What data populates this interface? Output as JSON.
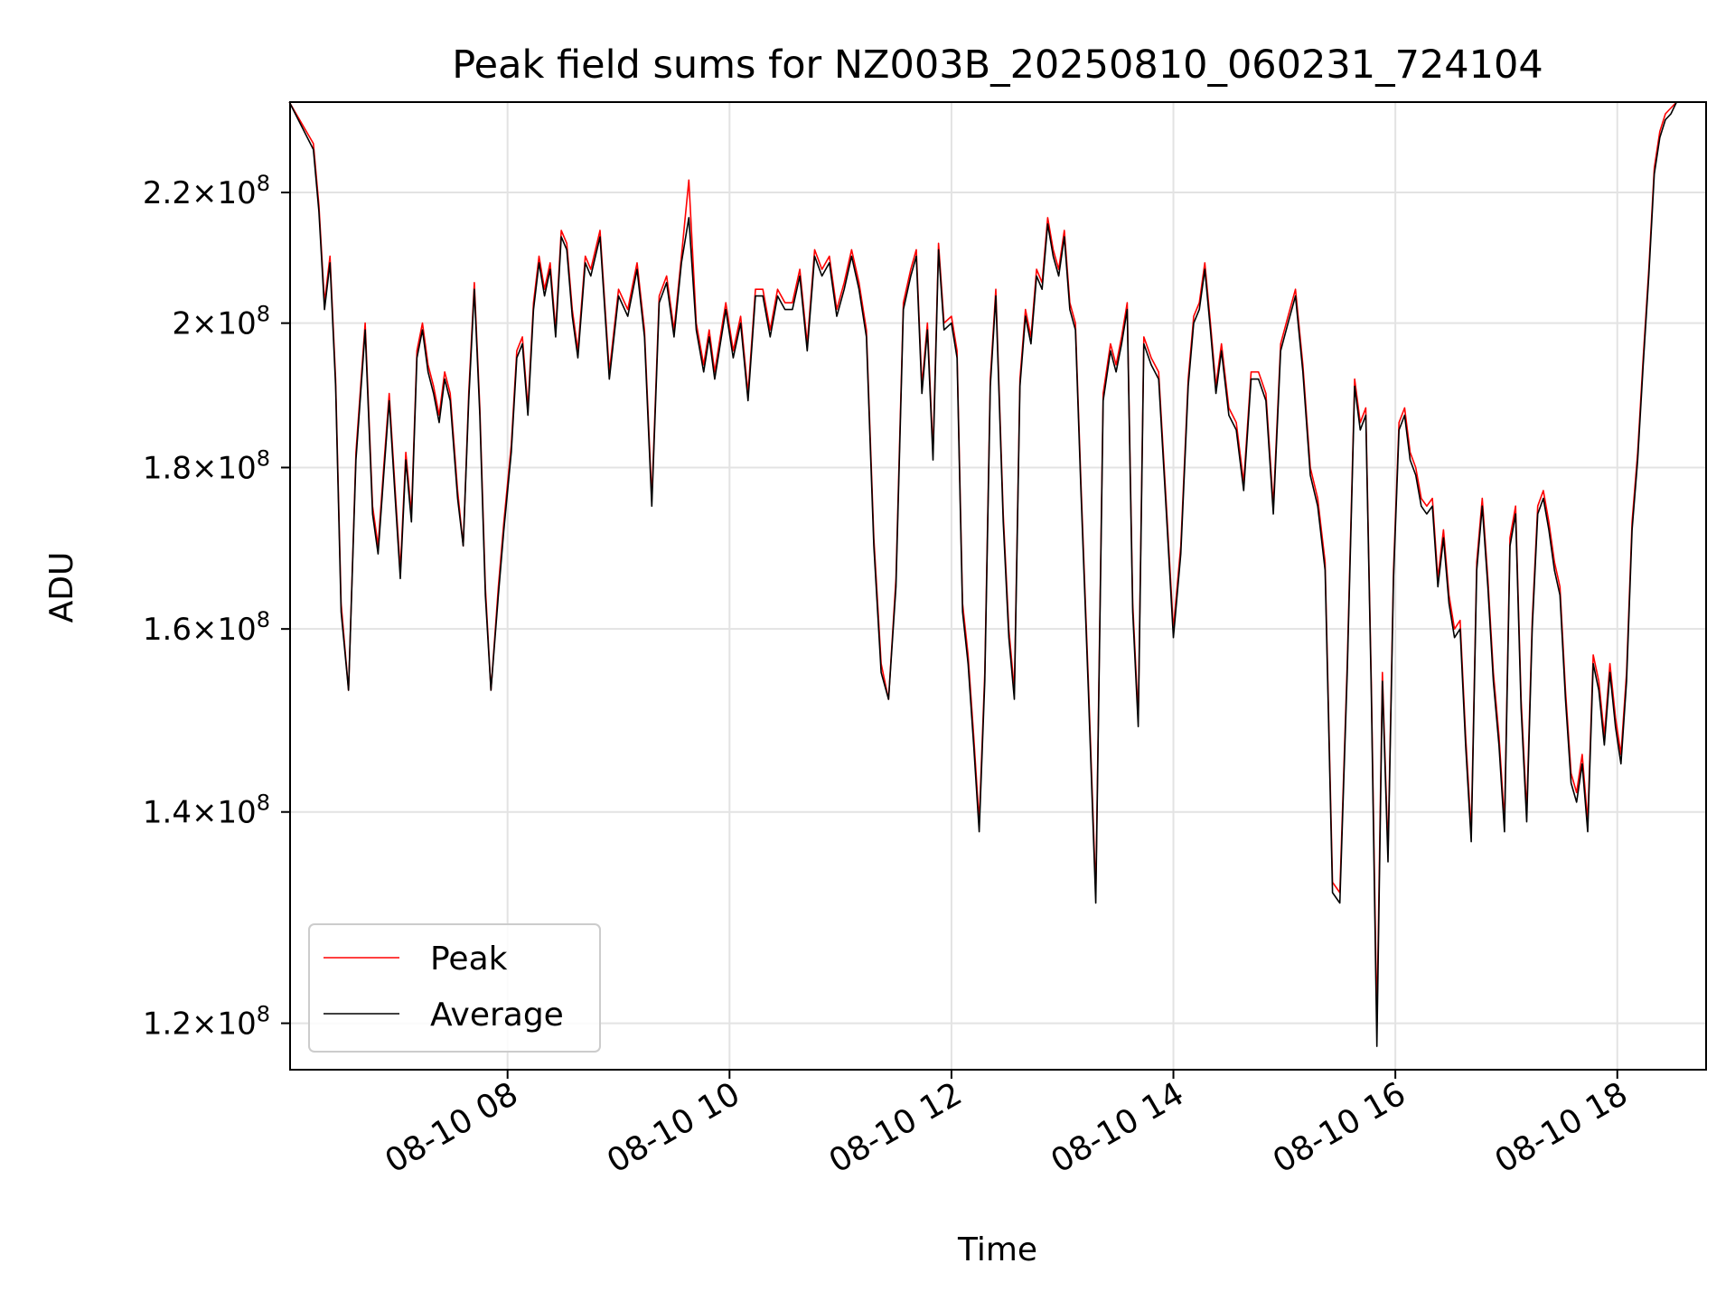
{
  "chart_data": {
    "type": "line",
    "title": "Peak field sums for NZ003B_20250810_060231_724104",
    "xlabel": "Time",
    "ylabel": "ADU",
    "yscale": "log",
    "ylim": [
      116000000,
      235000000
    ],
    "xlim_hours": [
      6.04,
      18.8
    ],
    "grid": true,
    "legend_position": "lower-left",
    "x_ticks": [
      {
        "label": "08-10 08",
        "hour": 8
      },
      {
        "label": "08-10 10",
        "hour": 10
      },
      {
        "label": "08-10 12",
        "hour": 12
      },
      {
        "label": "08-10 14",
        "hour": 14
      },
      {
        "label": "08-10 16",
        "hour": 16
      },
      {
        "label": "08-10 18",
        "hour": 18
      }
    ],
    "y_ticks": [
      {
        "mantissa": "1.2",
        "value": 120000000
      },
      {
        "mantissa": "1.4",
        "value": 140000000
      },
      {
        "mantissa": "1.6",
        "value": 160000000
      },
      {
        "mantissa": "1.8",
        "value": 180000000
      },
      {
        "mantissa": "2",
        "value": 200000000
      },
      {
        "mantissa": "2.2",
        "value": 220000000
      }
    ],
    "y_tick_base": "10",
    "y_tick_exponent": "8",
    "x": [
      "08-10 06:02",
      "08-10 06:15",
      "08-10 06:18",
      "08-10 06:21",
      "08-10 06:24",
      "08-10 06:27",
      "08-10 06:30",
      "08-10 06:34",
      "08-10 06:38",
      "08-10 06:43",
      "08-10 06:47",
      "08-10 06:50",
      "08-10 06:53",
      "08-10 06:56",
      "08-10 06:59",
      "08-10 07:02",
      "08-10 07:05",
      "08-10 07:08",
      "08-10 07:11",
      "08-10 07:14",
      "08-10 07:17",
      "08-10 07:20",
      "08-10 07:23",
      "08-10 07:26",
      "08-10 07:29",
      "08-10 07:33",
      "08-10 07:36",
      "08-10 07:39",
      "08-10 07:42",
      "08-10 07:45",
      "08-10 07:48",
      "08-10 07:51",
      "08-10 07:55",
      "08-10 07:58",
      "08-10 08:02",
      "08-10 08:05",
      "08-10 08:08",
      "08-10 08:11",
      "08-10 08:14",
      "08-10 08:17",
      "08-10 08:20",
      "08-10 08:23",
      "08-10 08:26",
      "08-10 08:29",
      "08-10 08:32",
      "08-10 08:35",
      "08-10 08:38",
      "08-10 08:42",
      "08-10 08:45",
      "08-10 08:50",
      "08-10 08:55",
      "08-10 09:00",
      "08-10 09:05",
      "08-10 09:10",
      "08-10 09:14",
      "08-10 09:18",
      "08-10 09:22",
      "08-10 09:26",
      "08-10 09:30",
      "08-10 09:34",
      "08-10 09:38",
      "08-10 09:42",
      "08-10 09:46",
      "08-10 09:49",
      "08-10 09:52",
      "08-10 09:55",
      "08-10 09:58",
      "08-10 10:02",
      "08-10 10:06",
      "08-10 10:10",
      "08-10 10:14",
      "08-10 10:18",
      "08-10 10:22",
      "08-10 10:26",
      "08-10 10:30",
      "08-10 10:34",
      "08-10 10:38",
      "08-10 10:42",
      "08-10 10:46",
      "08-10 10:50",
      "08-10 10:54",
      "08-10 10:58",
      "08-10 11:02",
      "08-10 11:06",
      "08-10 11:10",
      "08-10 11:14",
      "08-10 11:18",
      "08-10 11:22",
      "08-10 11:26",
      "08-10 11:30",
      "08-10 11:34",
      "08-10 11:38",
      "08-10 11:41",
      "08-10 11:44",
      "08-10 11:47",
      "08-10 11:50",
      "08-10 11:53",
      "08-10 11:56",
      "08-10 12:00",
      "08-10 12:03",
      "08-10 12:06",
      "08-10 12:09",
      "08-10 12:12",
      "08-10 12:15",
      "08-10 12:18",
      "08-10 12:21",
      "08-10 12:24",
      "08-10 12:28",
      "08-10 12:31",
      "08-10 12:34",
      "08-10 12:37",
      "08-10 12:40",
      "08-10 12:43",
      "08-10 12:46",
      "08-10 12:49",
      "08-10 12:52",
      "08-10 12:55",
      "08-10 12:58",
      "08-10 13:01",
      "08-10 13:04",
      "08-10 13:07",
      "08-10 13:10",
      "08-10 13:14",
      "08-10 13:18",
      "08-10 13:22",
      "08-10 13:26",
      "08-10 13:29",
      "08-10 13:32",
      "08-10 13:35",
      "08-10 13:38",
      "08-10 13:41",
      "08-10 13:44",
      "08-10 13:48",
      "08-10 13:52",
      "08-10 13:56",
      "08-10 14:00",
      "08-10 14:04",
      "08-10 14:08",
      "08-10 14:11",
      "08-10 14:14",
      "08-10 14:17",
      "08-10 14:20",
      "08-10 14:23",
      "08-10 14:26",
      "08-10 14:30",
      "08-10 14:34",
      "08-10 14:38",
      "08-10 14:42",
      "08-10 14:46",
      "08-10 14:50",
      "08-10 14:54",
      "08-10 14:58",
      "08-10 15:02",
      "08-10 15:06",
      "08-10 15:10",
      "08-10 15:14",
      "08-10 15:18",
      "08-10 15:22",
      "08-10 15:26",
      "08-10 15:30",
      "08-10 15:34",
      "08-10 15:38",
      "08-10 15:41",
      "08-10 15:44",
      "08-10 15:47",
      "08-10 15:50",
      "08-10 15:53",
      "08-10 15:56",
      "08-10 15:59",
      "08-10 16:02",
      "08-10 16:05",
      "08-10 16:08",
      "08-10 16:11",
      "08-10 16:14",
      "08-10 16:17",
      "08-10 16:20",
      "08-10 16:23",
      "08-10 16:26",
      "08-10 16:29",
      "08-10 16:32",
      "08-10 16:35",
      "08-10 16:38",
      "08-10 16:41",
      "08-10 16:44",
      "08-10 16:47",
      "08-10 16:50",
      "08-10 16:53",
      "08-10 16:56",
      "08-10 16:59",
      "08-10 17:02",
      "08-10 17:05",
      "08-10 17:08",
      "08-10 17:11",
      "08-10 17:14",
      "08-10 17:17",
      "08-10 17:20",
      "08-10 17:23",
      "08-10 17:26",
      "08-10 17:29",
      "08-10 17:32",
      "08-10 17:35",
      "08-10 17:38",
      "08-10 17:41",
      "08-10 17:44",
      "08-10 17:47",
      "08-10 17:50",
      "08-10 17:53",
      "08-10 17:56",
      "08-10 17:59",
      "08-10 18:02",
      "08-10 18:05",
      "08-10 18:08",
      "08-10 18:11",
      "08-10 18:14",
      "08-10 18:17",
      "08-10 18:20",
      "08-10 18:23",
      "08-10 18:26",
      "08-10 18:29",
      "08-10 18:32",
      "08-10 18:35",
      "08-10 18:38",
      "08-10 18:42",
      "08-10 18:46"
    ],
    "series": [
      {
        "name": "Peak",
        "color": "#ff0000",
        "values": [
          235000000,
          228000000,
          218000000,
          203000000,
          210000000,
          192000000,
          163000000,
          153000000,
          182000000,
          200000000,
          175000000,
          170000000,
          180000000,
          190000000,
          178000000,
          167000000,
          182000000,
          174000000,
          196000000,
          200000000,
          194000000,
          191000000,
          187000000,
          193000000,
          190000000,
          177000000,
          170000000,
          190000000,
          206000000,
          188000000,
          165000000,
          153000000,
          165000000,
          173000000,
          183000000,
          196000000,
          198000000,
          188000000,
          203000000,
          210000000,
          205000000,
          209000000,
          199000000,
          214000000,
          212000000,
          202000000,
          196000000,
          210000000,
          208000000,
          214000000,
          193000000,
          205000000,
          202000000,
          209000000,
          199000000,
          176000000,
          204000000,
          207000000,
          199000000,
          210000000,
          222000000,
          200000000,
          194000000,
          199000000,
          193000000,
          198000000,
          203000000,
          196000000,
          201000000,
          190000000,
          205000000,
          205000000,
          199000000,
          205000000,
          203000000,
          203000000,
          208000000,
          197000000,
          211000000,
          208000000,
          210000000,
          202000000,
          206000000,
          211000000,
          206000000,
          199000000,
          171000000,
          156000000,
          152000000,
          166000000,
          203000000,
          208000000,
          211000000,
          191000000,
          200000000,
          182000000,
          212000000,
          200000000,
          201000000,
          196000000,
          163000000,
          157000000,
          148000000,
          139000000,
          155000000,
          192000000,
          205000000,
          174000000,
          160000000,
          153000000,
          192000000,
          202000000,
          198000000,
          208000000,
          206000000,
          216000000,
          211000000,
          208000000,
          214000000,
          203000000,
          200000000,
          178000000,
          154000000,
          132000000,
          190000000,
          197000000,
          194000000,
          198000000,
          203000000,
          163000000,
          150000000,
          198000000,
          195000000,
          193000000,
          176000000,
          160000000,
          170000000,
          192000000,
          201000000,
          203000000,
          209000000,
          200000000,
          191000000,
          197000000,
          188000000,
          186000000,
          178000000,
          193000000,
          193000000,
          190000000,
          175000000,
          197000000,
          201000000,
          205000000,
          194000000,
          180000000,
          176000000,
          168000000,
          133000000,
          132000000,
          156000000,
          192000000,
          186000000,
          188000000,
          154000000,
          120000000,
          155000000,
          136000000,
          167000000,
          186000000,
          188000000,
          182000000,
          180000000,
          176000000,
          175000000,
          176000000,
          166000000,
          172000000,
          164000000,
          160000000,
          161000000,
          148000000,
          138000000,
          168000000,
          176000000,
          166000000,
          155000000,
          148000000,
          139000000,
          171000000,
          175000000,
          152000000,
          140000000,
          161000000,
          175000000,
          177000000,
          173000000,
          168000000,
          165000000,
          153000000,
          144000000,
          142000000,
          146000000,
          139000000,
          157000000,
          154000000,
          148000000,
          156000000,
          150000000,
          146000000,
          155000000,
          173000000,
          182000000,
          195000000,
          208000000,
          224000000,
          230000000,
          233000000,
          234000000,
          235000000,
          235000000,
          235000000,
          235000000,
          235000000
        ]
      },
      {
        "name": "Average",
        "color": "#000000",
        "values": [
          235000000,
          227000000,
          217000000,
          202000000,
          209000000,
          191000000,
          162000000,
          153000000,
          181000000,
          199000000,
          174000000,
          169000000,
          179000000,
          189000000,
          177000000,
          166000000,
          181000000,
          173000000,
          195000000,
          199000000,
          193000000,
          190000000,
          186000000,
          192000000,
          189000000,
          176000000,
          170000000,
          189000000,
          205000000,
          187000000,
          164000000,
          153000000,
          164000000,
          172000000,
          182000000,
          195000000,
          197000000,
          187000000,
          202000000,
          209000000,
          204000000,
          208000000,
          198000000,
          213000000,
          211000000,
          201000000,
          195000000,
          209000000,
          207000000,
          213000000,
          192000000,
          204000000,
          201000000,
          208000000,
          198000000,
          175000000,
          203000000,
          206000000,
          198000000,
          209000000,
          216000000,
          199000000,
          193000000,
          198000000,
          192000000,
          197000000,
          202000000,
          195000000,
          200000000,
          189000000,
          204000000,
          204000000,
          198000000,
          204000000,
          202000000,
          202000000,
          207000000,
          196000000,
          210000000,
          207000000,
          209000000,
          201000000,
          205000000,
          210000000,
          205000000,
          198000000,
          170000000,
          155000000,
          152000000,
          165000000,
          202000000,
          207000000,
          210000000,
          190000000,
          199000000,
          181000000,
          211000000,
          199000000,
          200000000,
          195000000,
          162000000,
          156000000,
          147000000,
          138000000,
          154000000,
          191000000,
          204000000,
          173000000,
          159000000,
          152000000,
          191000000,
          201000000,
          197000000,
          207000000,
          205000000,
          215000000,
          210000000,
          207000000,
          213000000,
          202000000,
          199000000,
          177000000,
          153000000,
          131000000,
          189000000,
          196000000,
          193000000,
          197000000,
          202000000,
          162000000,
          149000000,
          197000000,
          194000000,
          192000000,
          175000000,
          159000000,
          169000000,
          191000000,
          200000000,
          202000000,
          208000000,
          199000000,
          190000000,
          196000000,
          187000000,
          185000000,
          177000000,
          192000000,
          192000000,
          189000000,
          174000000,
          196000000,
          200000000,
          204000000,
          193000000,
          179000000,
          175000000,
          167000000,
          132000000,
          131000000,
          155000000,
          191000000,
          185000000,
          187000000,
          153000000,
          118000000,
          154000000,
          135000000,
          166000000,
          185000000,
          187000000,
          181000000,
          179000000,
          175000000,
          174000000,
          175000000,
          165000000,
          171000000,
          163000000,
          159000000,
          160000000,
          147000000,
          137000000,
          167000000,
          175000000,
          165000000,
          154000000,
          147000000,
          138000000,
          170000000,
          174000000,
          151000000,
          139000000,
          160000000,
          174000000,
          176000000,
          172000000,
          167000000,
          164000000,
          152000000,
          143000000,
          141000000,
          145000000,
          138000000,
          156000000,
          153000000,
          147000000,
          155000000,
          149000000,
          145000000,
          154000000,
          172000000,
          181000000,
          194000000,
          207000000,
          223000000,
          229000000,
          232000000,
          233000000,
          235000000,
          235000000,
          235000000,
          235000000,
          235000000
        ]
      }
    ]
  }
}
